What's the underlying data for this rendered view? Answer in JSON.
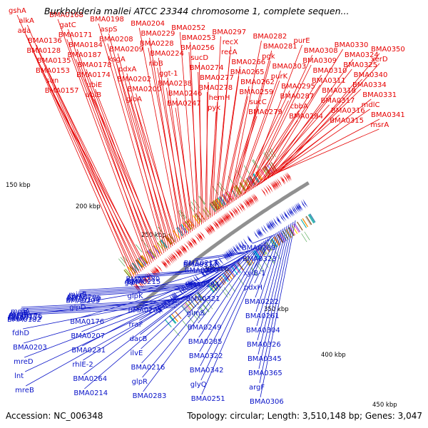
{
  "title": "Burkholderia mallei ATCC 23344 chromosome 1, complete sequen...",
  "footer": {
    "accession": "Accession: NC_006348",
    "summary": "Topology: circular; Length: 3,510,148 bp; Genes: 3,047"
  },
  "colors": {
    "forward_gene": "#e60000",
    "reverse_gene": "#0a14c8",
    "backbone": "#909090",
    "rna_marker": "#1a8a1a"
  },
  "ticks": [
    "150 kbp",
    "200 kbp",
    "250 kbp",
    "300 kbp",
    "350 kbp",
    "400 kbp",
    "450 kbp"
  ],
  "forward_labels": [
    "gshA",
    "alkA",
    "ada",
    "BMA0136",
    "BMA0128",
    "BMA0135",
    "BMA0153",
    "sun",
    "BMA0157",
    "BMA0168",
    "gatC",
    "BMA0171",
    "BMA0184",
    "BMA0187",
    "BMA0178",
    "BMA0174",
    "ubiE",
    "ubiB",
    "BMA0198",
    "aspS",
    "BMA0208",
    "BMA0209",
    "ksgA",
    "pdxA",
    "BMA0202",
    "BMA0200",
    "gloA",
    "BMA0204",
    "BMA0229",
    "BMA0228",
    "BMA0224",
    "ribB",
    "ggt-1",
    "BMA0238",
    "BMA0246",
    "BMA0247",
    "BMA0252",
    "BMA0253",
    "BMA0256",
    "sucD",
    "BMA0274",
    "BMA0277",
    "BMA0278",
    "hemH",
    "pyk",
    "BMA0297",
    "recX",
    "recA",
    "BMA0266",
    "BMA0265",
    "BMA0262",
    "BMA0259",
    "sucC",
    "BMA0279",
    "BMA0282",
    "BMA0281",
    "pgk",
    "BMA0303",
    "purK",
    "BMA0295",
    "BMA0287",
    "cbbA",
    "BMA0294",
    "purE",
    "BMA0308",
    "BMA0309",
    "BMA0310",
    "BMA0311",
    "BMA0318",
    "BMA0317",
    "BMA0316",
    "BMA0315",
    "BMA0330",
    "BMA0324",
    "BMA0325",
    "BMA0340",
    "BMA0334",
    "BMA0331",
    "mdlC",
    "BMA0341",
    "msrA",
    "BMA0350",
    "xerD"
  ],
  "reverse_labels": [
    "BMA0182",
    "BMA0155",
    "BMA0175",
    "mrdB",
    "queF",
    "mrdA",
    "ilvA",
    "fdhD",
    "BMA0203",
    "mreD",
    "lnt",
    "mreB",
    "BMA0205",
    "BMA0172",
    "BMA0206",
    "corC",
    "miaB",
    "glpD",
    "BMA0176",
    "BMA0207",
    "BMA0231",
    "rhlE-2",
    "BMA0264",
    "BMA0214",
    "glpF",
    "dgoA",
    "BMA0280",
    "BMA0215",
    "glpK",
    "BMA0269",
    "rraF",
    "dacB",
    "ilvE",
    "BMA0216",
    "glpR",
    "BMA0283",
    "BMA0314",
    "BMA0217",
    "BMA0250",
    "BMA0284",
    "BMA0321",
    "glmS",
    "BMA0249",
    "BMA0285",
    "BMA0322",
    "BMA0342",
    "glyQ",
    "BMA0251",
    "BMA0288",
    "BMA0323",
    "xylB-1",
    "pdxH",
    "BMA0222",
    "BMA0261",
    "BMA0304",
    "BMA0326",
    "BMA0345",
    "BMA0365",
    "argF",
    "BMA0306"
  ]
}
